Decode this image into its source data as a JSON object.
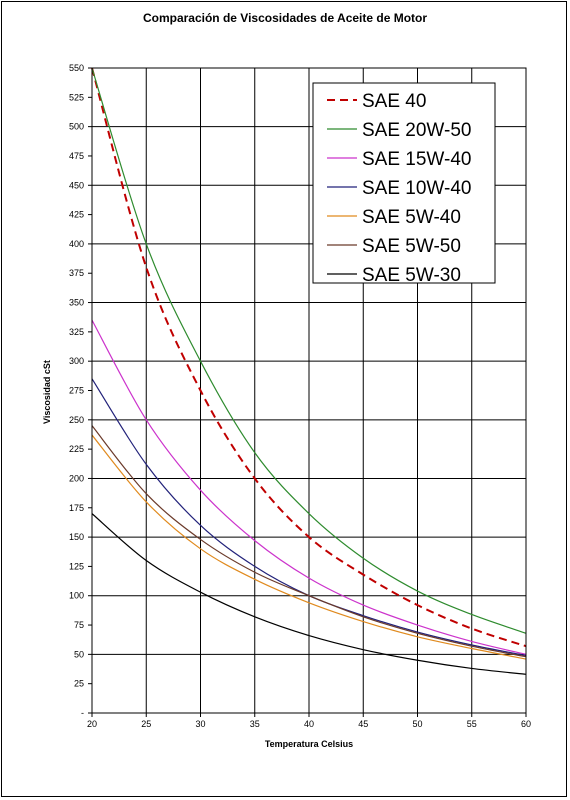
{
  "chart_data": {
    "type": "line",
    "title": "Comparación de Viscosidades de Aceite de Motor",
    "xlabel": "Temperatura Celsius",
    "ylabel": "Viscosidad cSt",
    "xlim": [
      20,
      60
    ],
    "ylim": [
      0,
      550
    ],
    "x_ticks": [
      "20",
      "25",
      "30",
      "35",
      "40",
      "45",
      "50",
      "55",
      "60"
    ],
    "y_ticks": [
      "-",
      "25",
      "50",
      "75",
      "100",
      "125",
      "150",
      "175",
      "200",
      "225",
      "250",
      "275",
      "300",
      "325",
      "350",
      "375",
      "400",
      "425",
      "450",
      "475",
      "500",
      "525",
      "550"
    ],
    "grid": true,
    "legend_position": "top-right",
    "x": [
      20,
      25,
      30,
      35,
      40,
      45,
      50,
      55,
      60
    ],
    "series": [
      {
        "name": "SAE 40",
        "color": "#c00000",
        "dash": true,
        "values": [
          550,
          380,
          275,
          200,
          150,
          118,
          92,
          72,
          57
        ]
      },
      {
        "name": "SAE 20W-50",
        "color": "#2e8b2e",
        "dash": false,
        "values": [
          550,
          400,
          300,
          222,
          170,
          132,
          104,
          84,
          68
        ]
      },
      {
        "name": "SAE 15W-40",
        "color": "#cc33cc",
        "dash": false,
        "values": [
          335,
          250,
          190,
          147,
          115,
          92,
          75,
          61,
          50
        ]
      },
      {
        "name": "SAE 10W-40",
        "color": "#22227a",
        "dash": false,
        "values": [
          285,
          212,
          160,
          125,
          100,
          83,
          69,
          58,
          49
        ]
      },
      {
        "name": "SAE 5W-40",
        "color": "#e08a1e",
        "dash": false,
        "values": [
          237,
          180,
          140,
          114,
          94,
          78,
          65,
          55,
          46
        ]
      },
      {
        "name": "SAE 5W-50",
        "color": "#6b3a2a",
        "dash": false,
        "values": [
          245,
          187,
          148,
          120,
          100,
          82,
          68,
          57,
          48
        ]
      },
      {
        "name": "SAE 5W-30",
        "color": "#000000",
        "dash": false,
        "values": [
          170,
          130,
          103,
          82,
          66,
          54,
          45,
          38,
          33
        ]
      }
    ]
  }
}
